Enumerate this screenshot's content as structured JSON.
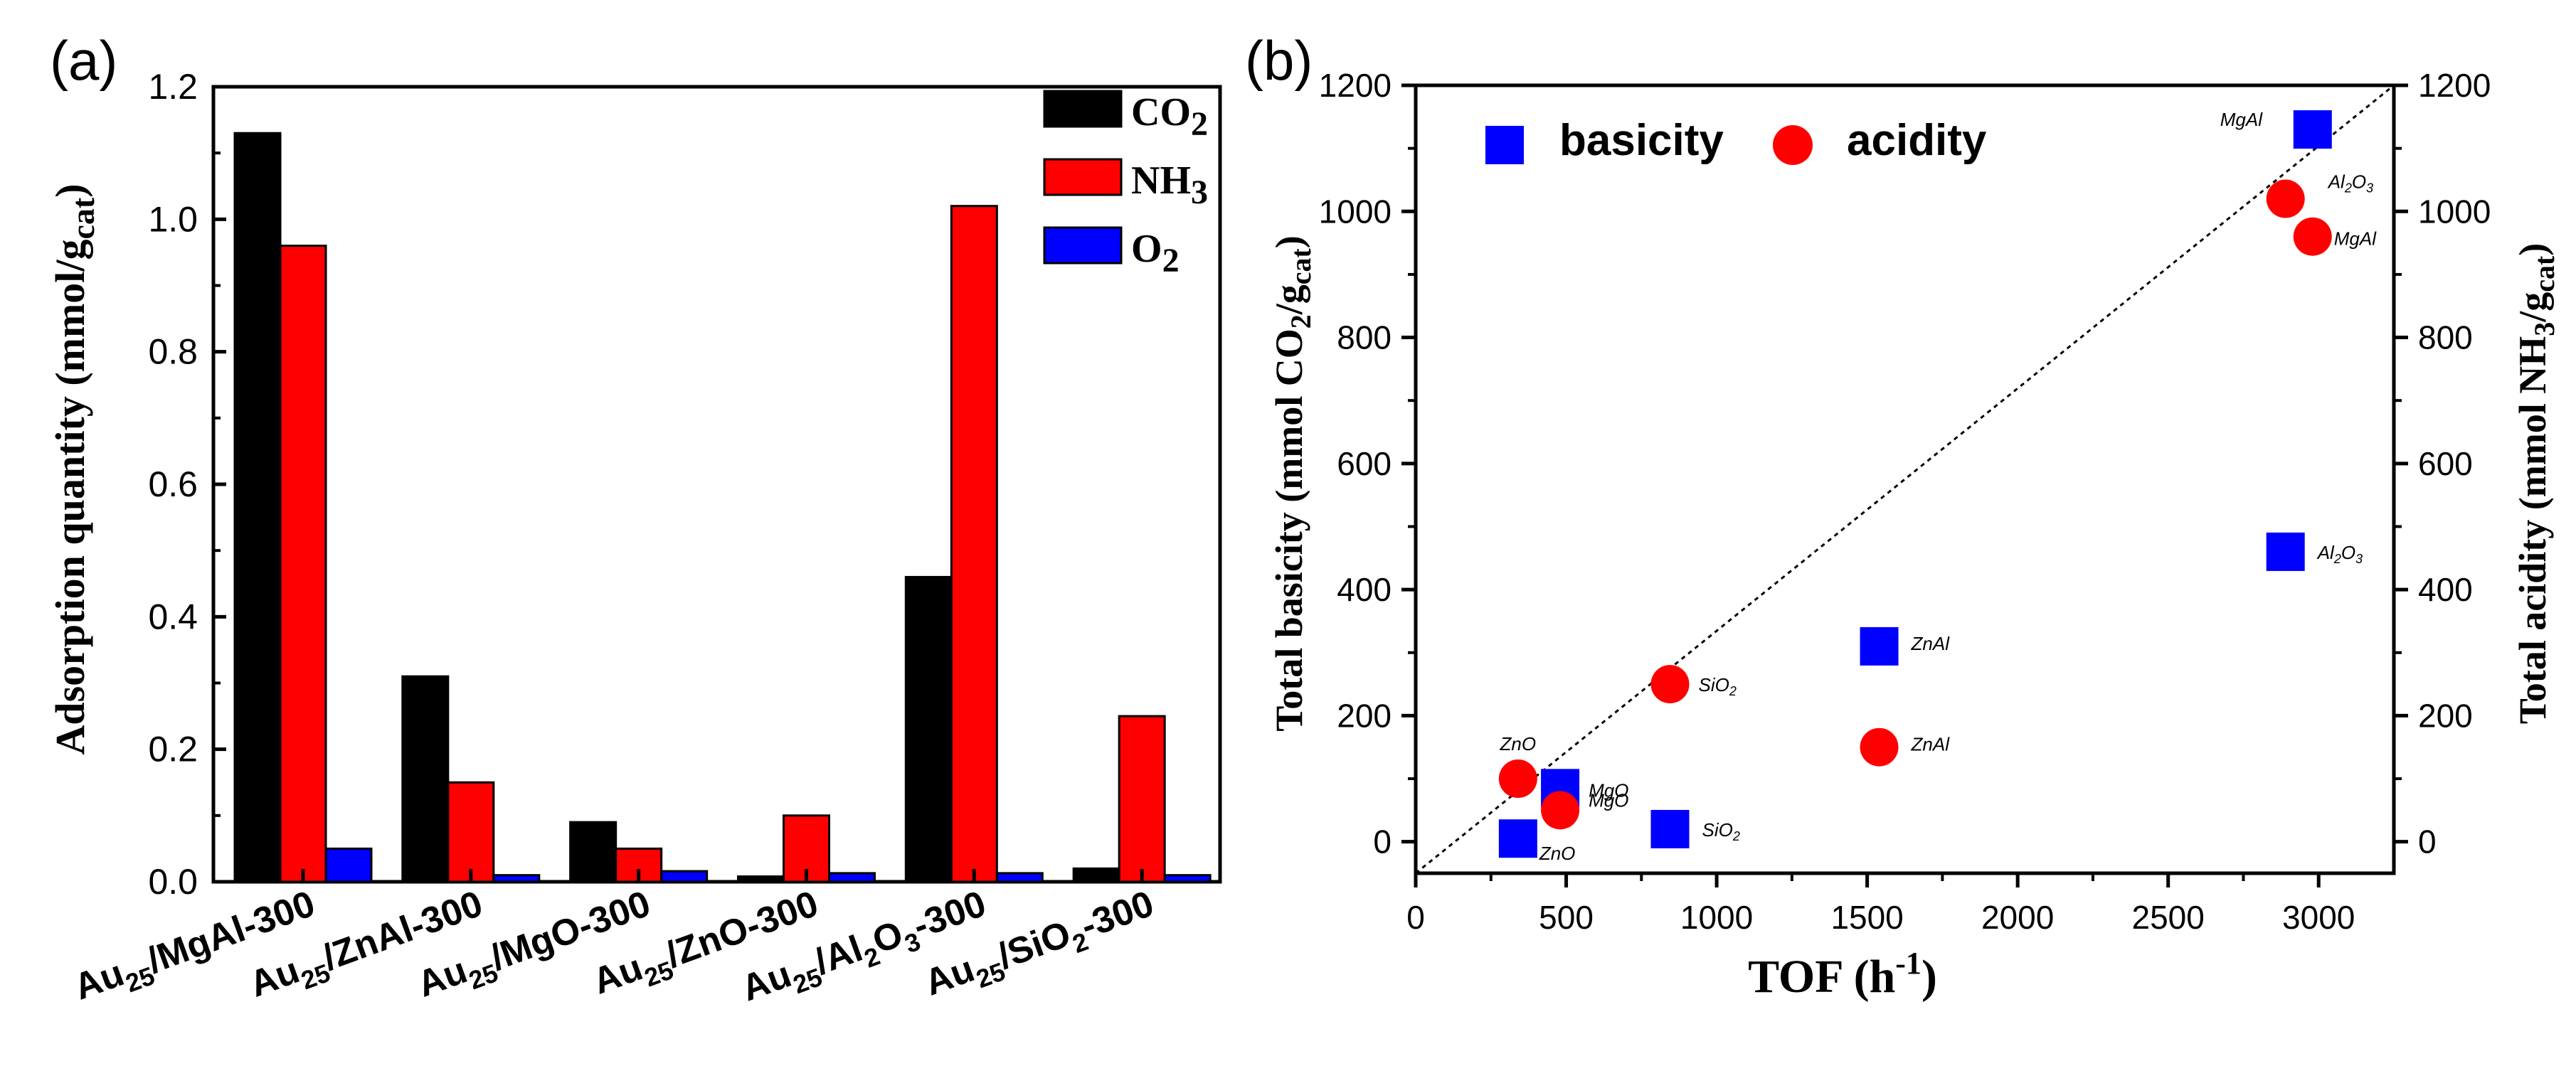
{
  "chart_data": [
    {
      "panel": "(a)",
      "type": "bar",
      "ylabel": "Adsorption quantity (mmol/gcat)",
      "ylim": [
        0,
        1.2
      ],
      "yticks": [
        "0.0",
        "0.2",
        "0.4",
        "0.6",
        "0.8",
        "1.0",
        "1.2"
      ],
      "categories": [
        {
          "base": "Au",
          "sub1": "25",
          "mid": "/MgAl-300"
        },
        {
          "base": "Au",
          "sub1": "25",
          "mid": "/ZnAl-300"
        },
        {
          "base": "Au",
          "sub1": "25",
          "mid": "/MgO-300"
        },
        {
          "base": "Au",
          "sub1": "25",
          "mid": "/ZnO-300"
        },
        {
          "base": "Au",
          "sub1": "25",
          "mid": "/Al",
          "sub2": "2",
          "tail": "O",
          "sub3": "3",
          "end": "-300"
        },
        {
          "base": "Au",
          "sub1": "25",
          "mid": "/SiO",
          "sub2": "2",
          "tail": "-300"
        }
      ],
      "series": [
        {
          "name": "CO",
          "sub": "2",
          "color": "#000000",
          "values": [
            1.13,
            0.31,
            0.09,
            0.008,
            0.46,
            0.02
          ]
        },
        {
          "name": "NH",
          "sub": "3",
          "color": "#ff0000",
          "values": [
            0.96,
            0.15,
            0.05,
            0.1,
            1.02,
            0.25
          ]
        },
        {
          "name": "O",
          "sub": "2",
          "color": "#0000ff",
          "values": [
            0.05,
            0.01,
            0.016,
            0.013,
            0.013,
            0.01
          ]
        }
      ]
    },
    {
      "panel": "(b)",
      "type": "scatter",
      "xlabel": "TOF (h⁻¹)",
      "ylabel_left": "Total basicity (mmol CO2/gcat)",
      "ylabel_right": "Total acidity (mmol NH3/gcat)",
      "xlim": [
        0,
        3250
      ],
      "ylim": [
        -50,
        1200
      ],
      "xticks": [
        0,
        500,
        1000,
        1500,
        2000,
        2500,
        3000
      ],
      "yticks": [
        0,
        200,
        400,
        600,
        800,
        1000,
        1200
      ],
      "diagonal": {
        "x": [
          0,
          3250
        ],
        "y": [
          -50,
          1200
        ]
      },
      "series": [
        {
          "name": "basicity",
          "marker": "square",
          "color": "#0000ff",
          "points": [
            {
              "x": 2980,
              "y": 1130,
              "label": "MgAl"
            },
            {
              "x": 2890,
              "y": 460,
              "label": "Al2O3"
            },
            {
              "x": 1540,
              "y": 310,
              "label": "ZnAl"
            },
            {
              "x": 480,
              "y": 85,
              "label": "MgO"
            },
            {
              "x": 340,
              "y": 5,
              "label": "ZnO"
            },
            {
              "x": 845,
              "y": 20,
              "label": "SiO2"
            }
          ]
        },
        {
          "name": "acidity",
          "marker": "circle",
          "color": "#ff0000",
          "points": [
            {
              "x": 2890,
              "y": 1020,
              "label": "Al2O3"
            },
            {
              "x": 2980,
              "y": 960,
              "label": "MgAl"
            },
            {
              "x": 845,
              "y": 250,
              "label": "SiO2"
            },
            {
              "x": 1540,
              "y": 150,
              "label": "ZnAl"
            },
            {
              "x": 340,
              "y": 100,
              "label": "ZnO"
            },
            {
              "x": 480,
              "y": 50,
              "label": "MgO"
            }
          ]
        }
      ]
    }
  ]
}
